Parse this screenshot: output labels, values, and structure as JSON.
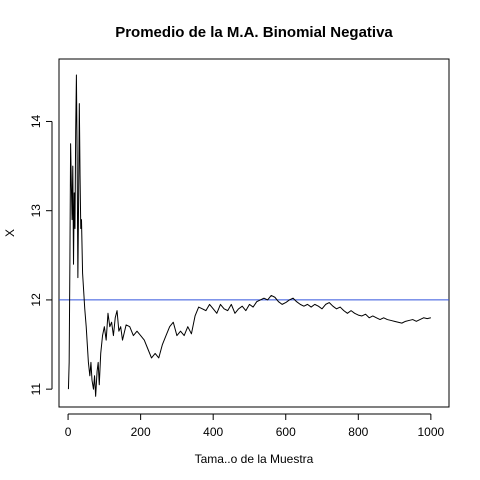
{
  "chart_data": {
    "type": "line",
    "title": "Promedio de la M.A. Binomial Negativa",
    "xlabel": "Tama..o de la Muestra",
    "ylabel": "X",
    "xlim": [
      -25,
      1050
    ],
    "ylim": [
      10.8,
      14.7
    ],
    "xticks": [
      0,
      200,
      400,
      600,
      800,
      1000
    ],
    "yticks": [
      11,
      12,
      13,
      14
    ],
    "reference_line": {
      "y": 12,
      "color": "#3355dd"
    },
    "series": [
      {
        "color": "#000000",
        "points": [
          [
            1,
            11.0
          ],
          [
            3,
            11.3
          ],
          [
            5,
            12.4
          ],
          [
            7,
            13.75
          ],
          [
            9,
            13.3
          ],
          [
            11,
            12.9
          ],
          [
            13,
            13.5
          ],
          [
            15,
            12.4
          ],
          [
            17,
            13.2
          ],
          [
            19,
            12.8
          ],
          [
            21,
            13.9
          ],
          [
            23,
            14.52
          ],
          [
            25,
            13.6
          ],
          [
            27,
            12.25
          ],
          [
            29,
            13.1
          ],
          [
            31,
            14.2
          ],
          [
            33,
            13.4
          ],
          [
            35,
            12.8
          ],
          [
            37,
            12.9
          ],
          [
            40,
            12.3
          ],
          [
            43,
            12.1
          ],
          [
            46,
            11.9
          ],
          [
            50,
            11.7
          ],
          [
            53,
            11.5
          ],
          [
            56,
            11.3
          ],
          [
            60,
            11.15
          ],
          [
            63,
            11.3
          ],
          [
            66,
            11.1
          ],
          [
            70,
            11.0
          ],
          [
            73,
            11.15
          ],
          [
            76,
            10.92
          ],
          [
            80,
            11.2
          ],
          [
            83,
            11.3
          ],
          [
            86,
            11.05
          ],
          [
            90,
            11.4
          ],
          [
            95,
            11.6
          ],
          [
            100,
            11.7
          ],
          [
            105,
            11.55
          ],
          [
            110,
            11.85
          ],
          [
            115,
            11.7
          ],
          [
            120,
            11.75
          ],
          [
            125,
            11.6
          ],
          [
            130,
            11.8
          ],
          [
            135,
            11.88
          ],
          [
            140,
            11.65
          ],
          [
            145,
            11.7
          ],
          [
            150,
            11.55
          ],
          [
            160,
            11.72
          ],
          [
            170,
            11.7
          ],
          [
            180,
            11.6
          ],
          [
            190,
            11.65
          ],
          [
            200,
            11.6
          ],
          [
            210,
            11.55
          ],
          [
            220,
            11.45
          ],
          [
            230,
            11.35
          ],
          [
            240,
            11.4
          ],
          [
            250,
            11.35
          ],
          [
            260,
            11.5
          ],
          [
            270,
            11.6
          ],
          [
            280,
            11.7
          ],
          [
            290,
            11.75
          ],
          [
            300,
            11.6
          ],
          [
            310,
            11.65
          ],
          [
            320,
            11.6
          ],
          [
            330,
            11.7
          ],
          [
            340,
            11.62
          ],
          [
            350,
            11.82
          ],
          [
            360,
            11.92
          ],
          [
            370,
            11.9
          ],
          [
            380,
            11.88
          ],
          [
            390,
            11.95
          ],
          [
            400,
            11.9
          ],
          [
            410,
            11.85
          ],
          [
            420,
            11.95
          ],
          [
            430,
            11.9
          ],
          [
            440,
            11.88
          ],
          [
            450,
            11.95
          ],
          [
            460,
            11.85
          ],
          [
            470,
            11.9
          ],
          [
            480,
            11.93
          ],
          [
            490,
            11.88
          ],
          [
            500,
            11.95
          ],
          [
            510,
            11.92
          ],
          [
            520,
            11.98
          ],
          [
            530,
            12.0
          ],
          [
            540,
            12.02
          ],
          [
            550,
            12.0
          ],
          [
            560,
            12.05
          ],
          [
            570,
            12.03
          ],
          [
            580,
            11.98
          ],
          [
            590,
            11.95
          ],
          [
            600,
            11.97
          ],
          [
            610,
            12.0
          ],
          [
            620,
            12.02
          ],
          [
            630,
            11.98
          ],
          [
            640,
            11.95
          ],
          [
            650,
            11.93
          ],
          [
            660,
            11.95
          ],
          [
            670,
            11.92
          ],
          [
            680,
            11.95
          ],
          [
            690,
            11.93
          ],
          [
            700,
            11.9
          ],
          [
            710,
            11.95
          ],
          [
            720,
            11.97
          ],
          [
            730,
            11.93
          ],
          [
            740,
            11.9
          ],
          [
            750,
            11.92
          ],
          [
            760,
            11.88
          ],
          [
            770,
            11.85
          ],
          [
            780,
            11.88
          ],
          [
            790,
            11.85
          ],
          [
            800,
            11.83
          ],
          [
            810,
            11.82
          ],
          [
            820,
            11.84
          ],
          [
            830,
            11.8
          ],
          [
            840,
            11.82
          ],
          [
            850,
            11.8
          ],
          [
            860,
            11.78
          ],
          [
            870,
            11.8
          ],
          [
            880,
            11.78
          ],
          [
            890,
            11.77
          ],
          [
            900,
            11.76
          ],
          [
            910,
            11.75
          ],
          [
            920,
            11.74
          ],
          [
            930,
            11.76
          ],
          [
            940,
            11.77
          ],
          [
            950,
            11.78
          ],
          [
            960,
            11.76
          ],
          [
            970,
            11.78
          ],
          [
            980,
            11.8
          ],
          [
            990,
            11.79
          ],
          [
            1000,
            11.8
          ]
        ]
      }
    ]
  }
}
